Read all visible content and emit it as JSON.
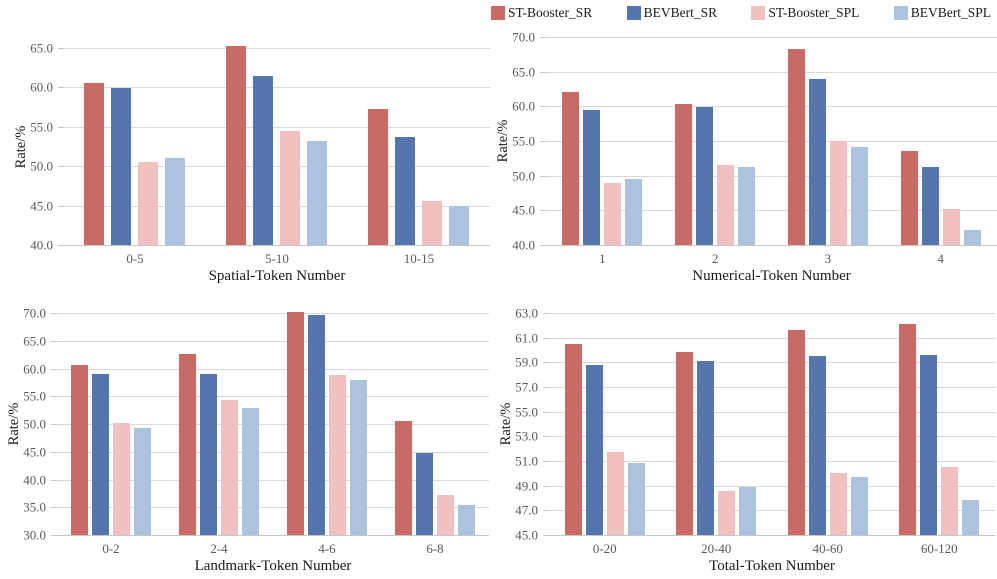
{
  "legend": {
    "items": [
      {
        "label": "ST-Booster_SR",
        "color": "#CA6A65"
      },
      {
        "label": "BEVBert_SR",
        "color": "#5476AC"
      },
      {
        "label": "ST-Booster_SPL",
        "color": "#F0C1C0"
      },
      {
        "label": "BEVBert_SPL",
        "color": "#ACC3DE"
      }
    ]
  },
  "styles": {
    "gridline_color": "#D9D9D9",
    "axis_line_color": "#C6C6C6",
    "tick_text_color": "#595959",
    "title_text_color": "#1A1A1A"
  },
  "chart_data": [
    {
      "type": "bar",
      "title": "",
      "xlabel": "Spatial-Token Number",
      "ylabel": "Rate/%",
      "ylim": [
        40.0,
        65.0
      ],
      "ystep": 5.0,
      "grid": true,
      "legend_position": "top",
      "categories": [
        "0-5",
        "5-10",
        "10-15"
      ],
      "series": [
        {
          "name": "ST-Booster_SR",
          "values": [
            60.6,
            65.3,
            57.2
          ]
        },
        {
          "name": "BEVBert_SR",
          "values": [
            59.9,
            61.5,
            53.7
          ]
        },
        {
          "name": "ST-Booster_SPL",
          "values": [
            50.5,
            54.5,
            45.6
          ]
        },
        {
          "name": "BEVBert_SPL",
          "values": [
            51.1,
            53.2,
            45.0
          ]
        }
      ]
    },
    {
      "type": "bar",
      "title": "",
      "xlabel": "Numerical-Token Number",
      "ylabel": "Rate/%",
      "ylim": [
        40.0,
        70.0
      ],
      "ystep": 5.0,
      "grid": true,
      "legend_position": "top",
      "categories": [
        "1",
        "2",
        "3",
        "4"
      ],
      "series": [
        {
          "name": "ST-Booster_SR",
          "values": [
            62.0,
            60.4,
            68.3,
            53.6
          ]
        },
        {
          "name": "BEVBert_SR",
          "values": [
            59.5,
            59.9,
            64.0,
            51.3
          ]
        },
        {
          "name": "ST-Booster_SPL",
          "values": [
            49.0,
            51.6,
            55.0,
            45.2
          ]
        },
        {
          "name": "BEVBert_SPL",
          "values": [
            49.5,
            51.2,
            54.1,
            42.1
          ]
        }
      ]
    },
    {
      "type": "bar",
      "title": "",
      "xlabel": "Landmark-Token Number",
      "ylabel": "Rate/%",
      "ylim": [
        30.0,
        70.0
      ],
      "ystep": 5.0,
      "grid": true,
      "legend_position": "top",
      "categories": [
        "0-2",
        "2-4",
        "4-6",
        "6-8"
      ],
      "series": [
        {
          "name": "ST-Booster_SR",
          "values": [
            60.6,
            62.7,
            70.1,
            50.5
          ]
        },
        {
          "name": "BEVBert_SR",
          "values": [
            59.1,
            59.1,
            69.7,
            44.8
          ]
        },
        {
          "name": "ST-Booster_SPL",
          "values": [
            50.1,
            54.4,
            58.9,
            37.3
          ]
        },
        {
          "name": "BEVBert_SPL",
          "values": [
            49.2,
            52.8,
            58.0,
            35.4
          ]
        }
      ]
    },
    {
      "type": "bar",
      "title": "",
      "xlabel": "Total-Token Number",
      "ylabel": "Rate/%",
      "ylim": [
        45.0,
        63.0
      ],
      "ystep": 2.0,
      "grid": true,
      "legend_position": "top",
      "categories": [
        "0-20",
        "20-40",
        "40-60",
        "60-120"
      ],
      "series": [
        {
          "name": "ST-Booster_SR",
          "values": [
            60.5,
            59.8,
            61.6,
            62.1
          ]
        },
        {
          "name": "BEVBert_SR",
          "values": [
            58.8,
            59.1,
            59.5,
            59.6
          ]
        },
        {
          "name": "ST-Booster_SPL",
          "values": [
            51.7,
            48.6,
            50.0,
            50.5
          ]
        },
        {
          "name": "BEVBert_SPL",
          "values": [
            50.8,
            48.9,
            49.7,
            47.8
          ]
        }
      ]
    }
  ]
}
